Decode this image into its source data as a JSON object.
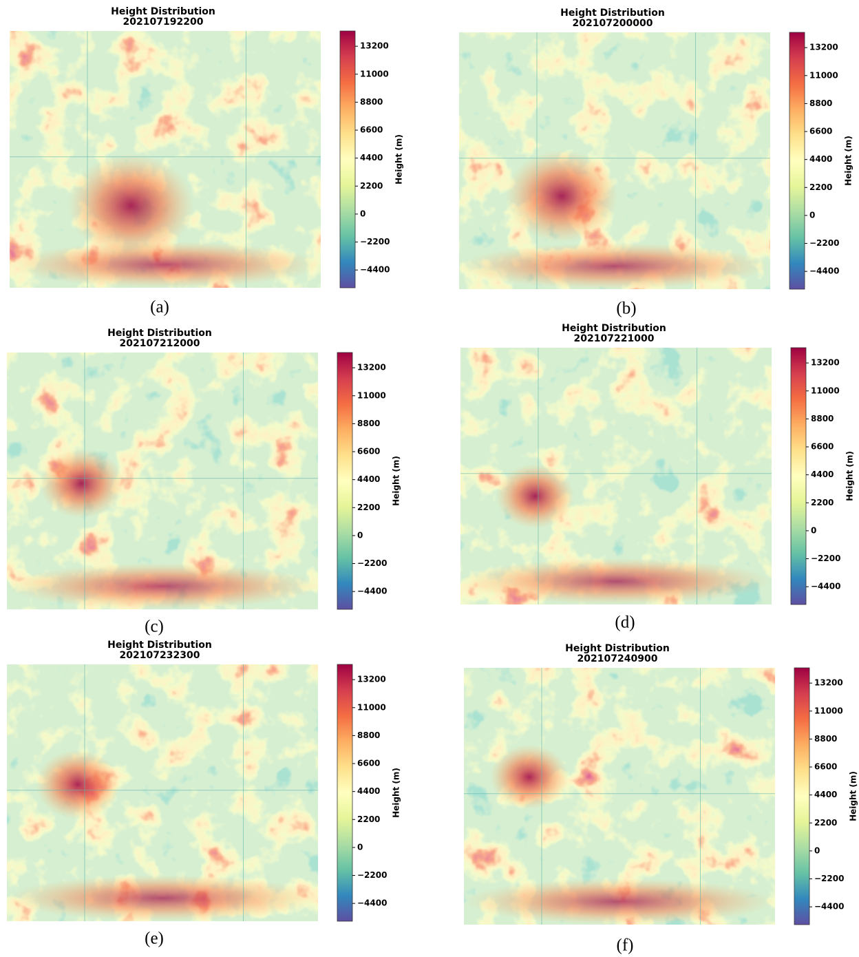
{
  "chart_data": [
    {
      "type": "heatmap",
      "title": "Height Distribution",
      "subtitle": "202107192200",
      "colorbar_label": "Height (m)",
      "caption": "(a)",
      "clim": [
        -5800,
        14400
      ],
      "cticks": [
        13200,
        11000,
        8800,
        6600,
        4400,
        2200,
        0,
        {
          "value": -2200,
          "label": "−2200"
        },
        {
          "value": -4400,
          "label": "−4400"
        }
      ],
      "colormap": [
        "#5e4fa2",
        "#3288bd",
        "#66c2a5",
        "#abdda4",
        "#e6f598",
        "#ffffbf",
        "#fee08b",
        "#fdae61",
        "#f46d43",
        "#d53e4f",
        "#9e0142"
      ]
    },
    {
      "type": "heatmap",
      "title": "Height Distribution",
      "subtitle": "202107200000",
      "colorbar_label": "Height (m)",
      "caption": "(b)",
      "clim": [
        -5800,
        14400
      ],
      "cticks": [
        13200,
        11000,
        8800,
        6600,
        4400,
        2200,
        0,
        {
          "value": -2200,
          "label": "−2200"
        },
        {
          "value": -4400,
          "label": "−4400"
        }
      ],
      "colormap": [
        "#5e4fa2",
        "#3288bd",
        "#66c2a5",
        "#abdda4",
        "#e6f598",
        "#ffffbf",
        "#fee08b",
        "#fdae61",
        "#f46d43",
        "#d53e4f",
        "#9e0142"
      ]
    },
    {
      "type": "heatmap",
      "title": "Height Distribution",
      "subtitle": "202107212000",
      "colorbar_label": "Height (m)",
      "caption": "(c)",
      "clim": [
        -5800,
        14400
      ],
      "cticks": [
        13200,
        11000,
        8800,
        6600,
        4400,
        2200,
        0,
        {
          "value": -2200,
          "label": "−2200"
        },
        {
          "value": -4400,
          "label": "−4400"
        }
      ],
      "colormap": [
        "#5e4fa2",
        "#3288bd",
        "#66c2a5",
        "#abdda4",
        "#e6f598",
        "#ffffbf",
        "#fee08b",
        "#fdae61",
        "#f46d43",
        "#d53e4f",
        "#9e0142"
      ]
    },
    {
      "type": "heatmap",
      "title": "Height Distribution",
      "subtitle": "202107221000",
      "colorbar_label": "Height (m)",
      "caption": "(d)",
      "clim": [
        -5800,
        14400
      ],
      "cticks": [
        13200,
        11000,
        8800,
        6600,
        4400,
        2200,
        0,
        {
          "value": -2200,
          "label": "−2200"
        },
        {
          "value": -4400,
          "label": "−4400"
        }
      ],
      "colormap": [
        "#5e4fa2",
        "#3288bd",
        "#66c2a5",
        "#abdda4",
        "#e6f598",
        "#ffffbf",
        "#fee08b",
        "#fdae61",
        "#f46d43",
        "#d53e4f",
        "#9e0142"
      ]
    },
    {
      "type": "heatmap",
      "title": "Height Distribution",
      "subtitle": "202107232300",
      "colorbar_label": "Height (m)",
      "caption": "(e)",
      "clim": [
        -5800,
        14400
      ],
      "cticks": [
        13200,
        11000,
        8800,
        6600,
        4400,
        2200,
        0,
        {
          "value": -2200,
          "label": "−2200"
        },
        {
          "value": -4400,
          "label": "−4400"
        }
      ],
      "colormap": [
        "#5e4fa2",
        "#3288bd",
        "#66c2a5",
        "#abdda4",
        "#e6f598",
        "#ffffbf",
        "#fee08b",
        "#fdae61",
        "#f46d43",
        "#d53e4f",
        "#9e0142"
      ]
    },
    {
      "type": "heatmap",
      "title": "Height Distribution",
      "subtitle": "202107240900",
      "colorbar_label": "Height (m)",
      "caption": "(f)",
      "clim": [
        -5800,
        14400
      ],
      "cticks": [
        13200,
        11000,
        8800,
        6600,
        4400,
        2200,
        0,
        {
          "value": -2200,
          "label": "−2200"
        },
        {
          "value": -4400,
          "label": "−4400"
        }
      ],
      "colormap": [
        "#5e4fa2",
        "#3288bd",
        "#66c2a5",
        "#abdda4",
        "#e6f598",
        "#ffffbf",
        "#fee08b",
        "#fdae61",
        "#f46d43",
        "#d53e4f",
        "#9e0142"
      ]
    }
  ]
}
